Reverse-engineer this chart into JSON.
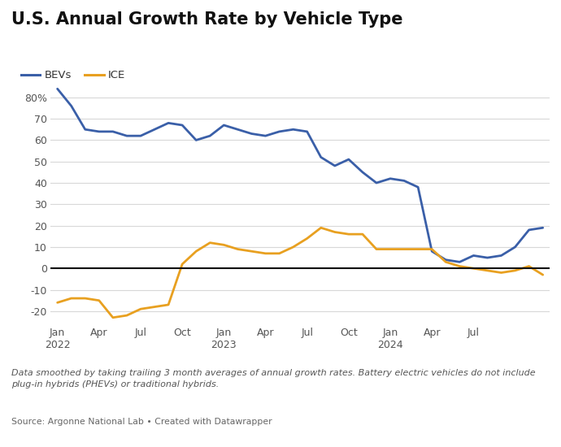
{
  "title": "U.S. Annual Growth Rate by Vehicle Type",
  "background_color": "#ffffff",
  "plot_bg_color": "#ffffff",
  "bev_color": "#3a5fa8",
  "ice_color": "#e8a020",
  "zero_line_color": "#111111",
  "grid_color": "#d8d8d8",
  "ylim": [
    -25,
    90
  ],
  "yticks": [
    -20,
    -10,
    0,
    10,
    20,
    30,
    40,
    50,
    60,
    70,
    80
  ],
  "footnote": "Data smoothed by taking trailing 3 month averages of annual growth rates. Battery electric vehicles do not include\nplug-in hybrids (PHEVs) or traditional hybrids.",
  "source": "Source: Argonne National Lab • Created with Datawrapper",
  "bev_data": [
    84,
    76,
    65,
    64,
    64,
    62,
    62,
    65,
    68,
    67,
    60,
    62,
    67,
    65,
    63,
    62,
    64,
    65,
    64,
    52,
    48,
    51,
    45,
    40,
    42,
    41,
    38,
    8,
    4,
    3,
    6,
    5,
    6,
    10,
    18,
    19
  ],
  "ice_data": [
    -16,
    -14,
    -14,
    -15,
    -23,
    -22,
    -19,
    -18,
    -17,
    2,
    8,
    12,
    11,
    9,
    8,
    7,
    7,
    10,
    14,
    19,
    17,
    16,
    16,
    9,
    9,
    9,
    9,
    9,
    3,
    1,
    0,
    -1,
    -2,
    -1,
    1,
    -3
  ],
  "x_tick_positions": [
    0,
    3,
    6,
    9,
    12,
    15,
    18,
    21,
    24,
    27,
    30
  ],
  "x_tick_labels": [
    "Jan\n2022",
    "Apr",
    "Jul",
    "Oct",
    "Jan\n2023",
    "Apr",
    "Jul",
    "Oct",
    "Jan\n2024",
    "Apr",
    "Jul"
  ]
}
